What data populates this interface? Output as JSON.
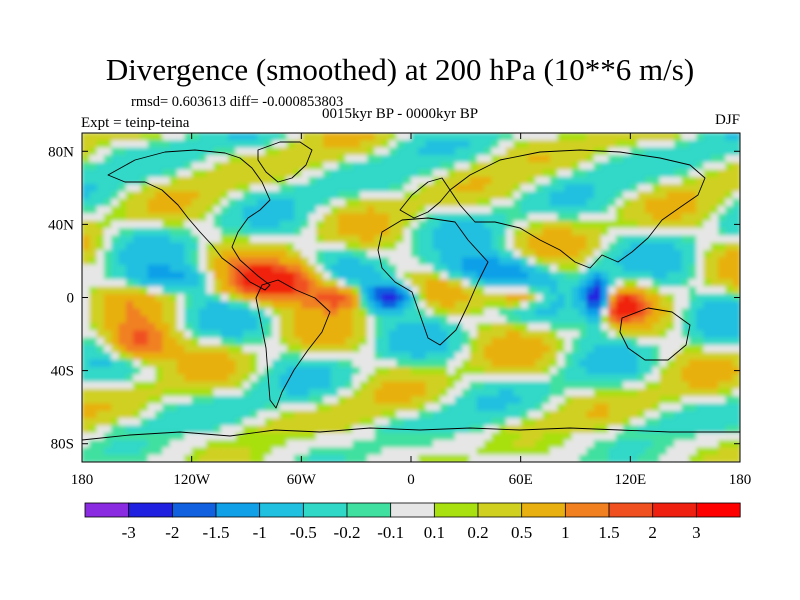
{
  "header": {
    "title": "Divergence (smoothed) at 200 hPa (10**6 m/s)",
    "stats": "rmsd= 0.603613 diff= -0.000853803",
    "subtitle": "0015kyr BP - 0000kyr BP",
    "experiment": "Expt = teinp-teina",
    "season": "DJF"
  },
  "chart_data": {
    "type": "heatmap",
    "title": "Divergence (smoothed) at 200 hPa (10**6 m/s)",
    "xlabel": "",
    "ylabel": "",
    "xlim": [
      -180,
      180
    ],
    "ylim": [
      -90,
      90
    ],
    "x_ticks": [
      {
        "value": -180,
        "label": "180"
      },
      {
        "value": -120,
        "label": "120W"
      },
      {
        "value": -60,
        "label": "60W"
      },
      {
        "value": 0,
        "label": "0"
      },
      {
        "value": 60,
        "label": "60E"
      },
      {
        "value": 120,
        "label": "120E"
      },
      {
        "value": 180,
        "label": "180"
      }
    ],
    "y_ticks": [
      {
        "value": 80,
        "label": "80N"
      },
      {
        "value": 40,
        "label": "40N"
      },
      {
        "value": 0,
        "label": "0"
      },
      {
        "value": -40,
        "label": "40S"
      },
      {
        "value": -80,
        "label": "80S"
      }
    ],
    "background_color": "#e6e6e6",
    "levels": [
      "-3",
      "-2",
      "-1.5",
      "-1",
      "-0.5",
      "-0.2",
      "-0.1",
      "0.1",
      "0.2",
      "0.5",
      "1",
      "1.5",
      "2",
      "3"
    ],
    "colorbar_colors": [
      "#8a2be2",
      "#2020e0",
      "#1060e0",
      "#10a0e8",
      "#20c0e0",
      "#30d8c8",
      "#40e0a0",
      "#e6e6e6",
      "#a8e010",
      "#d0d020",
      "#e8b010",
      "#f08020",
      "#f05020",
      "#f02010",
      "#ff0000"
    ],
    "features": [
      {
        "lon": -75,
        "lat": 8,
        "rx": 28,
        "ry": 10,
        "value": 2.5
      },
      {
        "lon": -15,
        "lat": 0,
        "rx": 16,
        "ry": 7,
        "value": -2.8
      },
      {
        "lon": -35,
        "lat": 0,
        "rx": 18,
        "ry": 7,
        "value": 2.2
      },
      {
        "lon": 102,
        "lat": 0,
        "rx": 8,
        "ry": 12,
        "value": -3.0
      },
      {
        "lon": 115,
        "lat": -5,
        "rx": 10,
        "ry": 8,
        "value": 2.2
      },
      {
        "lon": -150,
        "lat": -25,
        "rx": 18,
        "ry": 10,
        "value": 2.0
      },
      {
        "lon": 40,
        "lat": 15,
        "rx": 30,
        "ry": 8,
        "value": -1.5
      },
      {
        "lon": 60,
        "lat": 0,
        "rx": 15,
        "ry": 6,
        "value": 1.5
      },
      {
        "lon": -130,
        "lat": 10,
        "rx": 30,
        "ry": 7,
        "value": -1.0
      }
    ]
  }
}
